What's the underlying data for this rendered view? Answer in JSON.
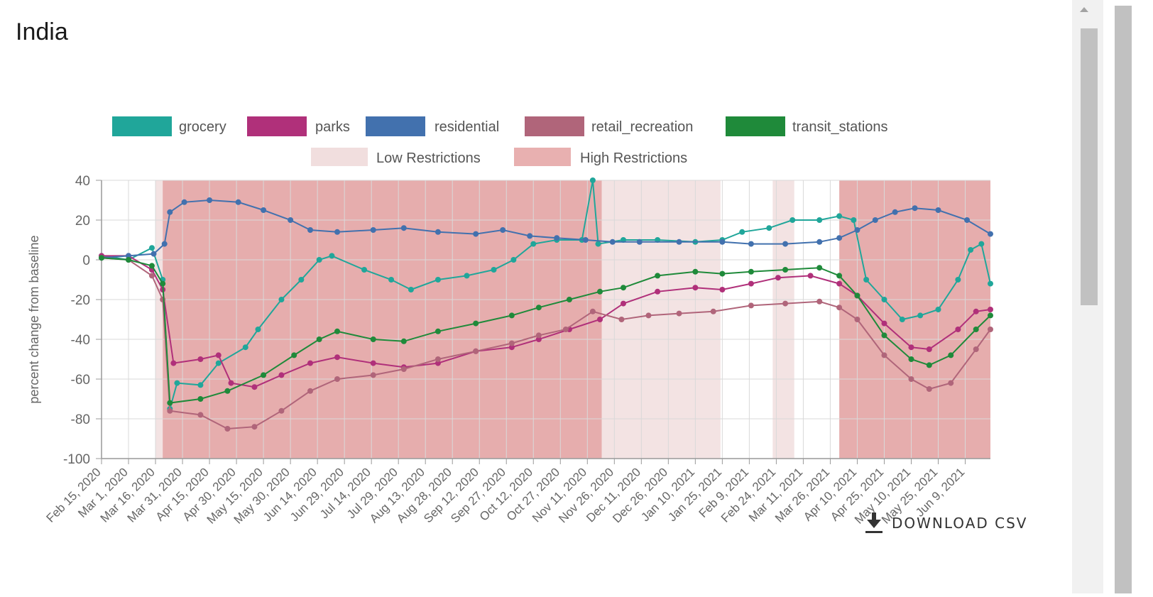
{
  "page": {
    "title": "India"
  },
  "download": {
    "label": "DOWNLOAD CSV",
    "icon": "download-icon"
  },
  "chart_data": {
    "type": "line",
    "ylabel": "percent change from baseline",
    "ylim": [
      -100,
      40
    ],
    "yticks": [
      40,
      20,
      0,
      -20,
      -40,
      -60,
      -80,
      -100
    ],
    "grid": true,
    "legend_position": "top",
    "x_start": "2020-02-15",
    "x_end": "2021-06-23",
    "xtick_labels": [
      "Feb 15, 2020",
      "Mar 1, 2020",
      "Mar 16, 2020",
      "Mar 31, 2020",
      "Apr 15, 2020",
      "Apr 30, 2020",
      "May 15, 2020",
      "May 30, 2020",
      "Jun 14, 2020",
      "Jun 29, 2020",
      "Jul 14, 2020",
      "Jul 29, 2020",
      "Aug 13, 2020",
      "Aug 28, 2020",
      "Sep 12, 2020",
      "Sep 27, 2020",
      "Oct 12, 2020",
      "Oct 27, 2020",
      "Nov 11, 2020",
      "Nov 26, 2020",
      "Dec 11, 2020",
      "Dec 26, 2020",
      "Jan 10, 2021",
      "Jan 25, 2021",
      "Feb 9, 2021",
      "Feb 24, 2021",
      "Mar 11, 2021",
      "Mar 26, 2021",
      "Apr 10, 2021",
      "Apr 25, 2021",
      "May 10, 2021",
      "May 25, 2021",
      "Jun 9, 2021"
    ],
    "restriction_legend": [
      {
        "name": "Low Restrictions",
        "color": "#f1dede"
      },
      {
        "name": "High Restrictions",
        "color": "#e8b0b0"
      }
    ],
    "restriction_periods": [
      {
        "level": "low",
        "start": "2020-03-16",
        "end": "2020-03-20"
      },
      {
        "level": "high",
        "start": "2020-03-20",
        "end": "2020-11-19"
      },
      {
        "level": "low",
        "start": "2020-11-19",
        "end": "2021-01-24"
      },
      {
        "level": "low",
        "start": "2021-02-22",
        "end": "2021-03-06"
      },
      {
        "level": "high",
        "start": "2021-03-31",
        "end": "2021-06-23"
      }
    ],
    "series": [
      {
        "name": "grocery",
        "color": "#20a69a",
        "points": [
          [
            "2020-02-15",
            2
          ],
          [
            "2020-03-01",
            0
          ],
          [
            "2020-03-14",
            6
          ],
          [
            "2020-03-20",
            -10
          ],
          [
            "2020-03-24",
            -75
          ],
          [
            "2020-03-28",
            -62
          ],
          [
            "2020-04-10",
            -63
          ],
          [
            "2020-04-20",
            -52
          ],
          [
            "2020-05-05",
            -44
          ],
          [
            "2020-05-12",
            -35
          ],
          [
            "2020-05-25",
            -20
          ],
          [
            "2020-06-05",
            -10
          ],
          [
            "2020-06-15",
            0
          ],
          [
            "2020-06-22",
            2
          ],
          [
            "2020-07-10",
            -5
          ],
          [
            "2020-07-25",
            -10
          ],
          [
            "2020-08-05",
            -15
          ],
          [
            "2020-08-20",
            -10
          ],
          [
            "2020-09-05",
            -8
          ],
          [
            "2020-09-20",
            -5
          ],
          [
            "2020-10-01",
            0
          ],
          [
            "2020-10-12",
            8
          ],
          [
            "2020-10-25",
            10
          ],
          [
            "2020-11-08",
            10
          ],
          [
            "2020-11-14",
            40
          ],
          [
            "2020-11-17",
            8
          ],
          [
            "2020-12-01",
            10
          ],
          [
            "2020-12-20",
            10
          ],
          [
            "2021-01-10",
            9
          ],
          [
            "2021-01-25",
            10
          ],
          [
            "2021-02-05",
            14
          ],
          [
            "2021-02-20",
            16
          ],
          [
            "2021-03-05",
            20
          ],
          [
            "2021-03-20",
            20
          ],
          [
            "2021-03-31",
            22
          ],
          [
            "2021-04-08",
            20
          ],
          [
            "2021-04-15",
            -10
          ],
          [
            "2021-04-25",
            -20
          ],
          [
            "2021-05-05",
            -30
          ],
          [
            "2021-05-15",
            -28
          ],
          [
            "2021-05-25",
            -25
          ],
          [
            "2021-06-05",
            -10
          ],
          [
            "2021-06-12",
            5
          ],
          [
            "2021-06-18",
            8
          ],
          [
            "2021-06-23",
            -12
          ]
        ]
      },
      {
        "name": "parks",
        "color": "#b0307a",
        "points": [
          [
            "2020-02-15",
            2
          ],
          [
            "2020-03-01",
            2
          ],
          [
            "2020-03-14",
            -5
          ],
          [
            "2020-03-20",
            -15
          ],
          [
            "2020-03-26",
            -52
          ],
          [
            "2020-04-10",
            -50
          ],
          [
            "2020-04-20",
            -48
          ],
          [
            "2020-04-27",
            -62
          ],
          [
            "2020-05-10",
            -64
          ],
          [
            "2020-05-25",
            -58
          ],
          [
            "2020-06-10",
            -52
          ],
          [
            "2020-06-25",
            -49
          ],
          [
            "2020-07-15",
            -52
          ],
          [
            "2020-08-01",
            -54
          ],
          [
            "2020-08-20",
            -52
          ],
          [
            "2020-09-10",
            -46
          ],
          [
            "2020-09-30",
            -44
          ],
          [
            "2020-10-15",
            -40
          ],
          [
            "2020-11-01",
            -35
          ],
          [
            "2020-11-18",
            -30
          ],
          [
            "2020-12-01",
            -22
          ],
          [
            "2020-12-20",
            -16
          ],
          [
            "2021-01-10",
            -14
          ],
          [
            "2021-01-25",
            -15
          ],
          [
            "2021-02-10",
            -12
          ],
          [
            "2021-02-25",
            -9
          ],
          [
            "2021-03-15",
            -8
          ],
          [
            "2021-03-31",
            -12
          ],
          [
            "2021-04-10",
            -18
          ],
          [
            "2021-04-25",
            -32
          ],
          [
            "2021-05-10",
            -44
          ],
          [
            "2021-05-20",
            -45
          ],
          [
            "2021-06-05",
            -35
          ],
          [
            "2021-06-15",
            -26
          ],
          [
            "2021-06-23",
            -25
          ]
        ]
      },
      {
        "name": "residential",
        "color": "#4271ae",
        "points": [
          [
            "2020-02-15",
            1
          ],
          [
            "2020-03-01",
            2
          ],
          [
            "2020-03-15",
            3
          ],
          [
            "2020-03-21",
            8
          ],
          [
            "2020-03-24",
            24
          ],
          [
            "2020-04-01",
            29
          ],
          [
            "2020-04-15",
            30
          ],
          [
            "2020-05-01",
            29
          ],
          [
            "2020-05-15",
            25
          ],
          [
            "2020-05-30",
            20
          ],
          [
            "2020-06-10",
            15
          ],
          [
            "2020-06-25",
            14
          ],
          [
            "2020-07-15",
            15
          ],
          [
            "2020-08-01",
            16
          ],
          [
            "2020-08-20",
            14
          ],
          [
            "2020-09-10",
            13
          ],
          [
            "2020-09-25",
            15
          ],
          [
            "2020-10-10",
            12
          ],
          [
            "2020-10-25",
            11
          ],
          [
            "2020-11-10",
            10
          ],
          [
            "2020-11-25",
            9
          ],
          [
            "2020-12-10",
            9
          ],
          [
            "2021-01-01",
            9
          ],
          [
            "2021-01-25",
            9
          ],
          [
            "2021-02-10",
            8
          ],
          [
            "2021-03-01",
            8
          ],
          [
            "2021-03-20",
            9
          ],
          [
            "2021-03-31",
            11
          ],
          [
            "2021-04-10",
            15
          ],
          [
            "2021-04-20",
            20
          ],
          [
            "2021-05-01",
            24
          ],
          [
            "2021-05-12",
            26
          ],
          [
            "2021-05-25",
            25
          ],
          [
            "2021-06-10",
            20
          ],
          [
            "2021-06-23",
            13
          ]
        ]
      },
      {
        "name": "retail_recreation",
        "color": "#b0657a",
        "points": [
          [
            "2020-02-15",
            1
          ],
          [
            "2020-03-01",
            0
          ],
          [
            "2020-03-14",
            -8
          ],
          [
            "2020-03-20",
            -20
          ],
          [
            "2020-03-24",
            -76
          ],
          [
            "2020-04-10",
            -78
          ],
          [
            "2020-04-25",
            -85
          ],
          [
            "2020-05-10",
            -84
          ],
          [
            "2020-05-25",
            -76
          ],
          [
            "2020-06-10",
            -66
          ],
          [
            "2020-06-25",
            -60
          ],
          [
            "2020-07-15",
            -58
          ],
          [
            "2020-08-01",
            -55
          ],
          [
            "2020-08-20",
            -50
          ],
          [
            "2020-09-10",
            -46
          ],
          [
            "2020-09-30",
            -42
          ],
          [
            "2020-10-15",
            -38
          ],
          [
            "2020-10-30",
            -35
          ],
          [
            "2020-11-14",
            -26
          ],
          [
            "2020-11-30",
            -30
          ],
          [
            "2020-12-15",
            -28
          ],
          [
            "2021-01-01",
            -27
          ],
          [
            "2021-01-20",
            -26
          ],
          [
            "2021-02-10",
            -23
          ],
          [
            "2021-03-01",
            -22
          ],
          [
            "2021-03-20",
            -21
          ],
          [
            "2021-03-31",
            -24
          ],
          [
            "2021-04-10",
            -30
          ],
          [
            "2021-04-25",
            -48
          ],
          [
            "2021-05-10",
            -60
          ],
          [
            "2021-05-20",
            -65
          ],
          [
            "2021-06-01",
            -62
          ],
          [
            "2021-06-15",
            -45
          ],
          [
            "2021-06-23",
            -35
          ]
        ]
      },
      {
        "name": "transit_stations",
        "color": "#1f8a3a",
        "points": [
          [
            "2020-02-15",
            1
          ],
          [
            "2020-03-01",
            0
          ],
          [
            "2020-03-14",
            -3
          ],
          [
            "2020-03-20",
            -12
          ],
          [
            "2020-03-24",
            -72
          ],
          [
            "2020-04-10",
            -70
          ],
          [
            "2020-04-25",
            -66
          ],
          [
            "2020-05-15",
            -58
          ],
          [
            "2020-06-01",
            -48
          ],
          [
            "2020-06-15",
            -40
          ],
          [
            "2020-06-25",
            -36
          ],
          [
            "2020-07-15",
            -40
          ],
          [
            "2020-08-01",
            -41
          ],
          [
            "2020-08-20",
            -36
          ],
          [
            "2020-09-10",
            -32
          ],
          [
            "2020-09-30",
            -28
          ],
          [
            "2020-10-15",
            -24
          ],
          [
            "2020-11-01",
            -20
          ],
          [
            "2020-11-18",
            -16
          ],
          [
            "2020-12-01",
            -14
          ],
          [
            "2020-12-20",
            -8
          ],
          [
            "2021-01-10",
            -6
          ],
          [
            "2021-01-25",
            -7
          ],
          [
            "2021-02-10",
            -6
          ],
          [
            "2021-03-01",
            -5
          ],
          [
            "2021-03-20",
            -4
          ],
          [
            "2021-03-31",
            -8
          ],
          [
            "2021-04-10",
            -18
          ],
          [
            "2021-04-25",
            -38
          ],
          [
            "2021-05-10",
            -50
          ],
          [
            "2021-05-20",
            -53
          ],
          [
            "2021-06-01",
            -48
          ],
          [
            "2021-06-15",
            -35
          ],
          [
            "2021-06-23",
            -28
          ]
        ]
      }
    ]
  }
}
